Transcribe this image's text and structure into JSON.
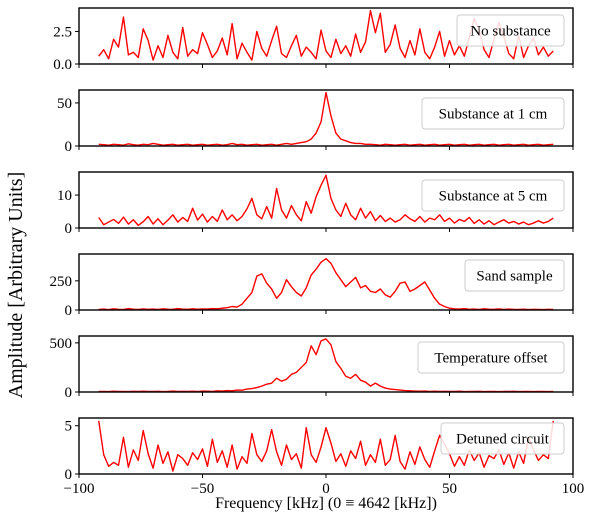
{
  "chart_data": {
    "type": "line",
    "ylabel": "Amplitude [Arbitrary Units]",
    "xlabel": "Frequency [kHz] (0 ≡ 4642 [kHz])",
    "xlim": [
      -100,
      100
    ],
    "xticks": [
      -100,
      -50,
      0,
      50,
      100
    ],
    "xtick_labels": [
      "−100",
      "−50",
      "0",
      "50",
      "100"
    ],
    "line_color": "#ff0000",
    "grid": false,
    "legend_placement": "right",
    "x": [
      -92,
      -90,
      -88,
      -86,
      -84,
      -82,
      -80,
      -78,
      -76,
      -74,
      -72,
      -70,
      -68,
      -66,
      -64,
      -62,
      -60,
      -58,
      -56,
      -54,
      -52,
      -50,
      -48,
      -46,
      -44,
      -42,
      -40,
      -38,
      -36,
      -34,
      -32,
      -30,
      -28,
      -26,
      -24,
      -22,
      -20,
      -18,
      -16,
      -14,
      -12,
      -10,
      -8,
      -6,
      -4,
      -2,
      0,
      2,
      4,
      6,
      8,
      10,
      12,
      14,
      16,
      18,
      20,
      22,
      24,
      26,
      28,
      30,
      32,
      34,
      36,
      38,
      40,
      42,
      44,
      46,
      48,
      50,
      52,
      54,
      56,
      58,
      60,
      62,
      64,
      66,
      68,
      70,
      72,
      74,
      76,
      78,
      80,
      82,
      84,
      86,
      88,
      90,
      92
    ],
    "panels": [
      {
        "legend": "No substance",
        "ylim": [
          0,
          4.3
        ],
        "yticks": [
          0,
          2.5
        ],
        "ytick_labels": [
          "0.0",
          "2.5"
        ],
        "y": [
          0.6,
          1.1,
          0.4,
          1.9,
          1.3,
          3.6,
          0.7,
          0.9,
          0.5,
          2.7,
          1.8,
          0.3,
          1.4,
          0.5,
          2.2,
          0.9,
          0.4,
          2.8,
          0.6,
          1.1,
          0.8,
          2.4,
          1.5,
          0.5,
          1.0,
          2.0,
          0.7,
          3.1,
          0.4,
          1.6,
          0.9,
          0.3,
          2.5,
          1.2,
          0.6,
          1.8,
          2.9,
          0.8,
          0.5,
          1.4,
          2.2,
          0.6,
          1.3,
          0.9,
          0.4,
          2.6,
          1.0,
          0.5,
          1.9,
          0.8,
          1.4,
          0.6,
          2.3,
          0.9,
          1.7,
          4.1,
          2.4,
          3.9,
          0.9,
          1.5,
          3.0,
          1.2,
          0.5,
          1.8,
          0.7,
          2.7,
          0.9,
          0.4,
          1.3,
          2.5,
          0.6,
          1.8,
          0.7,
          1.4,
          0.6,
          2.0,
          3.5,
          2.6,
          1.1,
          0.5,
          1.9,
          3.2,
          2.1,
          0.8,
          0.4,
          2.2,
          0.5,
          1.4,
          2.0,
          0.7,
          1.3,
          0.6,
          1.0
        ]
      },
      {
        "legend": "Substance at 1 cm",
        "ylim": [
          0,
          65
        ],
        "yticks": [
          0,
          50
        ],
        "ytick_labels": [
          "0",
          "50"
        ],
        "y": [
          2,
          1.5,
          1,
          2,
          1.5,
          1,
          2.5,
          1.5,
          1,
          2,
          1.5,
          3,
          2,
          1,
          1.5,
          2,
          1,
          1.5,
          2,
          1,
          1.5,
          2,
          1,
          1.5,
          2,
          1,
          1.5,
          3,
          1.5,
          2,
          1,
          1.5,
          2,
          1,
          1.5,
          2,
          1,
          2,
          3,
          2,
          3,
          4,
          5,
          8,
          15,
          28,
          62,
          35,
          15,
          8,
          6,
          4,
          3,
          3,
          2,
          2,
          1.5,
          1,
          2,
          1.5,
          1,
          1.5,
          2,
          1,
          1.5,
          2,
          1,
          1.5,
          2,
          1,
          1.5,
          2,
          1,
          1.5,
          2,
          1,
          1.5,
          2,
          1,
          1.5,
          2,
          1,
          1.5,
          2,
          1,
          1.5,
          2,
          1,
          1.5,
          2,
          1,
          1.5,
          2
        ]
      },
      {
        "legend": "Substance at 5 cm",
        "ylim": [
          0,
          17
        ],
        "yticks": [
          0,
          10
        ],
        "ytick_labels": [
          "0",
          "10"
        ],
        "y": [
          3.2,
          1.0,
          1.8,
          2.6,
          1.4,
          3.3,
          1.2,
          2.5,
          0.8,
          1.9,
          3.5,
          1.2,
          2.8,
          1.0,
          2.4,
          4.0,
          1.8,
          3.2,
          2.0,
          6.0,
          2.4,
          4.2,
          1.8,
          3.5,
          2.0,
          5.5,
          2.5,
          4.0,
          2.2,
          3.5,
          5.8,
          9.0,
          4.0,
          2.8,
          6.5,
          3.0,
          12.0,
          5.5,
          3.0,
          6.8,
          4.0,
          2.2,
          8.0,
          4.5,
          9.5,
          13.0,
          16.0,
          9.0,
          5.5,
          3.5,
          7.5,
          4.0,
          2.5,
          6.0,
          3.0,
          5.0,
          2.2,
          3.8,
          2.0,
          3.0,
          1.8,
          2.5,
          4.0,
          2.8,
          2.0,
          3.5,
          1.8,
          3.0,
          2.5,
          4.0,
          2.0,
          3.0,
          1.5,
          2.6,
          2.0,
          3.2,
          1.4,
          2.5,
          1.2,
          2.2,
          1.0,
          1.8,
          2.5,
          1.5,
          2.0,
          1.2,
          1.8,
          1.0,
          1.5,
          2.2,
          1.5,
          2.0,
          3.0
        ]
      },
      {
        "legend": "Sand sample",
        "ylim": [
          0,
          480
        ],
        "yticks": [
          0,
          250
        ],
        "ytick_labels": [
          "0",
          "250"
        ],
        "y": [
          5,
          8,
          4,
          10,
          6,
          5,
          12,
          7,
          5,
          9,
          6,
          8,
          5,
          10,
          7,
          6,
          12,
          8,
          6,
          10,
          7,
          9,
          8,
          12,
          10,
          15,
          20,
          30,
          25,
          50,
          100,
          150,
          290,
          310,
          230,
          180,
          100,
          150,
          260,
          200,
          150,
          120,
          190,
          300,
          350,
          410,
          440,
          400,
          320,
          260,
          200,
          240,
          280,
          190,
          210,
          160,
          150,
          180,
          130,
          110,
          160,
          230,
          240,
          160,
          180,
          210,
          240,
          170,
          100,
          50,
          30,
          15,
          10,
          8,
          12,
          6,
          8,
          5,
          10,
          7,
          6,
          9,
          5,
          8,
          6,
          5,
          7,
          4,
          6,
          5,
          4,
          6,
          5
        ]
      },
      {
        "legend": "Temperature offset",
        "ylim": [
          0,
          570
        ],
        "yticks": [
          0,
          500
        ],
        "ytick_labels": [
          "0",
          "500"
        ],
        "y": [
          5,
          6,
          4,
          8,
          5,
          6,
          4,
          7,
          5,
          8,
          6,
          5,
          7,
          4,
          6,
          9,
          5,
          7,
          6,
          8,
          5,
          10,
          8,
          6,
          12,
          10,
          15,
          12,
          20,
          18,
          30,
          35,
          45,
          60,
          80,
          90,
          140,
          110,
          130,
          180,
          200,
          250,
          300,
          470,
          380,
          520,
          540,
          480,
          310,
          240,
          160,
          140,
          180,
          120,
          100,
          60,
          90,
          60,
          40,
          30,
          25,
          20,
          15,
          12,
          10,
          8,
          9,
          6,
          8,
          5,
          7,
          6,
          5,
          8,
          4,
          6,
          5,
          7,
          4,
          6,
          5,
          4,
          6,
          5,
          7,
          4,
          5,
          6,
          4,
          5,
          6,
          4,
          5
        ]
      },
      {
        "legend": "Detuned circuit",
        "ylim": [
          0,
          5.8
        ],
        "yticks": [
          0,
          5
        ],
        "ytick_labels": [
          "0",
          "5"
        ],
        "y": [
          5.5,
          2.0,
          0.8,
          1.2,
          0.9,
          3.8,
          0.7,
          2.5,
          1.4,
          4.5,
          2.1,
          0.6,
          3.0,
          1.1,
          2.3,
          0.3,
          2.0,
          1.6,
          0.9,
          2.2,
          1.5,
          2.6,
          0.8,
          3.6,
          1.2,
          2.4,
          0.7,
          3.0,
          0.5,
          1.8,
          1.1,
          4.2,
          2.0,
          1.3,
          2.4,
          4.6,
          2.3,
          0.9,
          3.0,
          1.5,
          2.1,
          0.6,
          4.8,
          2.0,
          1.2,
          2.8,
          4.8,
          3.2,
          1.3,
          2.1,
          0.8,
          2.4,
          1.6,
          3.4,
          0.9,
          2.0,
          1.2,
          3.6,
          0.9,
          1.5,
          4.0,
          1.3,
          0.5,
          2.3,
          1.0,
          2.8,
          1.5,
          0.7,
          2.4,
          4.0,
          3.1,
          2.1,
          0.8,
          1.8,
          0.9,
          2.5,
          1.4,
          2.2,
          0.7,
          1.9,
          1.6,
          2.5,
          1.0,
          2.2,
          0.6,
          2.3,
          1.1,
          3.8,
          2.5,
          1.4,
          2.0,
          1.6,
          5.5
        ]
      }
    ]
  }
}
